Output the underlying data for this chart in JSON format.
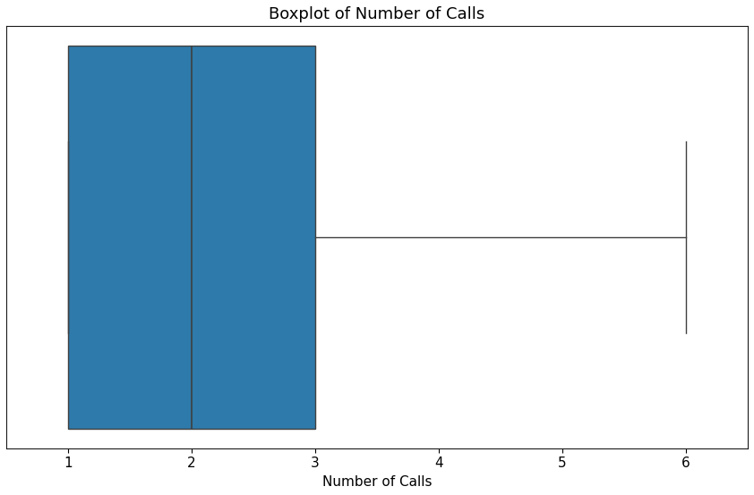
{
  "title": "Boxplot of Number of Calls",
  "xlabel": "Number of Calls",
  "box_color": "#2e7aaa",
  "box_edge_color": "#404040",
  "median_color": "#404040",
  "whisker_color": "#404040",
  "cap_color": "#404040",
  "xlim": [
    0.5,
    6.5
  ],
  "xticks": [
    1,
    2,
    3,
    4,
    5,
    6
  ],
  "figsize": [
    8.42,
    5.53
  ],
  "dpi": 100,
  "title_fontsize": 13,
  "label_fontsize": 11,
  "q1": 1,
  "median": 2,
  "q3": 3,
  "whisker_low": 1,
  "whisker_high": 6,
  "data": [
    1,
    1,
    1,
    1,
    1,
    1,
    1,
    2,
    2,
    2,
    2,
    2,
    2,
    2,
    3,
    3,
    3,
    3,
    3,
    3,
    3,
    6
  ]
}
